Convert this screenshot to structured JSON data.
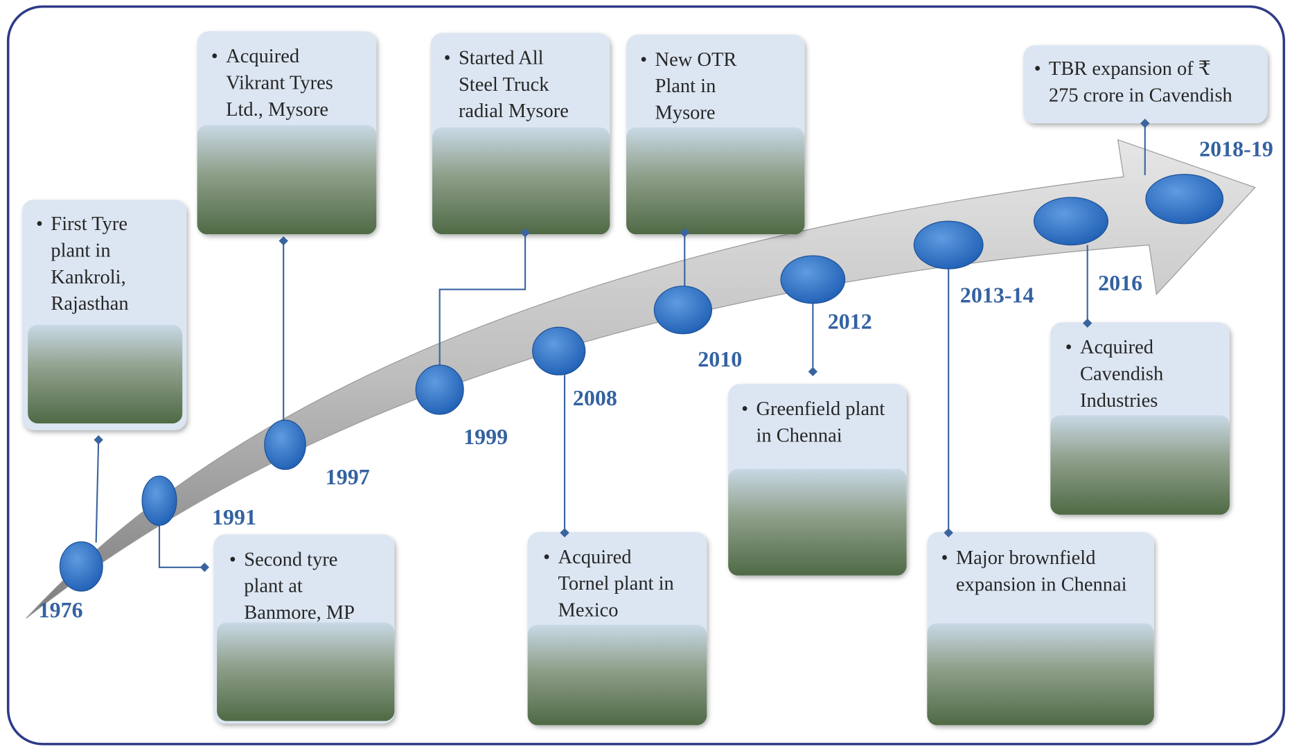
{
  "milestones": [
    {
      "year": "1976",
      "lines": [
        "First Tyre",
        "plant in",
        "Kankroli,",
        "Rajasthan"
      ]
    },
    {
      "year": "1991",
      "lines": [
        "Second tyre",
        "plant at",
        "Banmore, MP"
      ]
    },
    {
      "year": "1997",
      "lines": [
        "Acquired",
        "Vikrant Tyres",
        "Ltd., Mysore"
      ]
    },
    {
      "year": "1999",
      "lines": [
        "Started All",
        "Steel Truck",
        "radial Mysore"
      ]
    },
    {
      "year": "2008",
      "lines": [
        "Acquired",
        "Tornel plant in",
        "Mexico"
      ]
    },
    {
      "year": "2010",
      "lines": [
        "New OTR",
        "Plant in",
        "Mysore"
      ]
    },
    {
      "year": "2012",
      "lines": [
        "Greenfield plant",
        "in Chennai"
      ]
    },
    {
      "year": "2013-14",
      "lines": [
        "Major brownfield",
        "expansion in Chennai"
      ]
    },
    {
      "year": "2016",
      "lines": [
        "Acquired",
        "Cavendish",
        "Industries"
      ]
    },
    {
      "year": "2018-19",
      "lines": [
        "TBR expansion of ₹",
        "275 crore in Cavendish"
      ]
    }
  ]
}
